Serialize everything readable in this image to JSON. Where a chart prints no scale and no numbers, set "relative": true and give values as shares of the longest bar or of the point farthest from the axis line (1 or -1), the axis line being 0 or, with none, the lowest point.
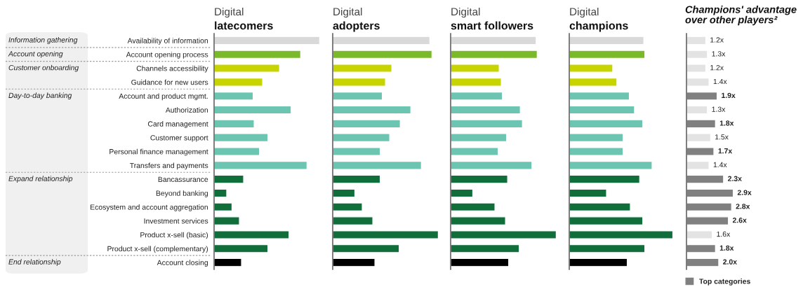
{
  "chart_data": [
    {
      "type": "bar",
      "orientation": "horizontal",
      "relative": true,
      "tick_labels": "y",
      "title": "Digital",
      "subtitle": "latecomers",
      "categories": [
        "Availability of information",
        "Account opening process",
        "Channels accessibility",
        "Guidance for new users",
        "Account and product mgmt.",
        "Authorization",
        "Card management",
        "Customer support",
        "Personal finance management",
        "Transfers and payments",
        "Bancassurance",
        "Beyond banking",
        "Ecosystem and account aggregation",
        "Investment services",
        "Product x-sell (basic)",
        "Product x-sell (complementary)",
        "Account closing"
      ],
      "values": [
        1,
        0.82,
        0.62,
        0.46,
        0.37,
        0.73,
        0.38,
        0.51,
        0.43,
        0.88,
        0.28,
        0.12,
        0.17,
        0.24,
        0.71,
        0.51,
        0.26
      ],
      "colors": [
        "#d9d9d9",
        "#7ab929",
        "#c8d400",
        "#c8d400",
        "#6cc5b0",
        "#6cc5b0",
        "#6cc5b0",
        "#6cc5b0",
        "#6cc5b0",
        "#6cc5b0",
        "#0f6e3a",
        "#0f6e3a",
        "#0f6e3a",
        "#0f6e3a",
        "#0f6e3a",
        "#0f6e3a",
        "#000000"
      ],
      "annotations": [
        "Information gathering",
        "Account opening",
        "Customer onboarding",
        "Day-to-day banking",
        "Expand relationship",
        "End relationship"
      ]
    },
    {
      "type": "bar",
      "orientation": "horizontal",
      "relative": true,
      "tick_labels": false,
      "title": "Digital",
      "subtitle": "adopters",
      "categories": [
        null,
        null,
        null,
        null,
        null,
        null,
        null,
        null,
        null,
        null,
        null,
        null,
        null,
        null,
        null,
        null,
        null
      ],
      "values": [
        0.92,
        0.94,
        0.56,
        0.5,
        0.47,
        0.74,
        0.64,
        0.54,
        0.45,
        0.84,
        0.45,
        0.21,
        0.28,
        0.38,
        1,
        0.63,
        0.4
      ],
      "colors": [
        "#d9d9d9",
        "#7ab929",
        "#c8d400",
        "#c8d400",
        "#6cc5b0",
        "#6cc5b0",
        "#6cc5b0",
        "#6cc5b0",
        "#6cc5b0",
        "#6cc5b0",
        "#0f6e3a",
        "#0f6e3a",
        "#0f6e3a",
        "#0f6e3a",
        "#0f6e3a",
        "#0f6e3a",
        "#000000"
      ]
    },
    {
      "type": "bar",
      "orientation": "horizontal",
      "relative": true,
      "tick_labels": false,
      "title": "Digital",
      "subtitle": "smart followers",
      "categories": [
        null,
        null,
        null,
        null,
        null,
        null,
        null,
        null,
        null,
        null,
        null,
        null,
        null,
        null,
        null,
        null,
        null
      ],
      "values": [
        0.81,
        0.82,
        0.46,
        0.48,
        0.49,
        0.66,
        0.68,
        0.53,
        0.45,
        0.77,
        0.54,
        0.21,
        0.42,
        0.52,
        1,
        0.65,
        0.55
      ],
      "colors": [
        "#d9d9d9",
        "#7ab929",
        "#c8d400",
        "#c8d400",
        "#6cc5b0",
        "#6cc5b0",
        "#6cc5b0",
        "#6cc5b0",
        "#6cc5b0",
        "#6cc5b0",
        "#0f6e3a",
        "#0f6e3a",
        "#0f6e3a",
        "#0f6e3a",
        "#0f6e3a",
        "#0f6e3a",
        "#000000"
      ]
    },
    {
      "type": "bar",
      "orientation": "horizontal",
      "relative": true,
      "tick_labels": false,
      "title": "Digital",
      "subtitle": "champions",
      "categories": [
        null,
        null,
        null,
        null,
        null,
        null,
        null,
        null,
        null,
        null,
        null,
        null,
        null,
        null,
        null,
        null,
        null
      ],
      "values": [
        0.72,
        0.73,
        0.42,
        0.46,
        0.58,
        0.63,
        0.71,
        0.52,
        0.52,
        0.8,
        0.68,
        0.36,
        0.59,
        0.71,
        1,
        0.73,
        0.56
      ],
      "colors": [
        "#d9d9d9",
        "#7ab929",
        "#c8d400",
        "#c8d400",
        "#6cc5b0",
        "#6cc5b0",
        "#6cc5b0",
        "#6cc5b0",
        "#6cc5b0",
        "#6cc5b0",
        "#0f6e3a",
        "#0f6e3a",
        "#0f6e3a",
        "#0f6e3a",
        "#0f6e3a",
        "#0f6e3a",
        "#000000"
      ]
    },
    {
      "type": "bar",
      "orientation": "horizontal",
      "tick_labels": false,
      "title": "Champions' advantage over other players²",
      "legend": "bottom",
      "categories": [
        null,
        null,
        null,
        null,
        null,
        null,
        null,
        null,
        null,
        null,
        null,
        null,
        null,
        null,
        null,
        null,
        null
      ],
      "series": [
        {
          "color": "#e3e3e3",
          "values": [
            1.2,
            1.3,
            1.2,
            1.4,
            null,
            1.3,
            null,
            1.5,
            null,
            1.4,
            null,
            null,
            null,
            null,
            1.6,
            null,
            null
          ],
          "value_labels": [
            "1.2x",
            "1.3x",
            "1.2x",
            "1.4x",
            null,
            "1.3x",
            null,
            "1.5x",
            null,
            "1.4x",
            null,
            null,
            null,
            null,
            "1.6x",
            null,
            null
          ]
        },
        {
          "name": "Top categories",
          "color": "#808080",
          "values": [
            null,
            null,
            null,
            null,
            1.9,
            null,
            1.8,
            null,
            1.7,
            null,
            2.3,
            2.9,
            2.8,
            2.6,
            null,
            1.8,
            2.0
          ],
          "value_labels": [
            null,
            null,
            null,
            null,
            "1.9x",
            null,
            "1.8x",
            null,
            "1.7x",
            null,
            "2.3x",
            "2.9x",
            "2.8x",
            "2.6x",
            null,
            "1.8x",
            "2.0x"
          ]
        }
      ]
    }
  ]
}
